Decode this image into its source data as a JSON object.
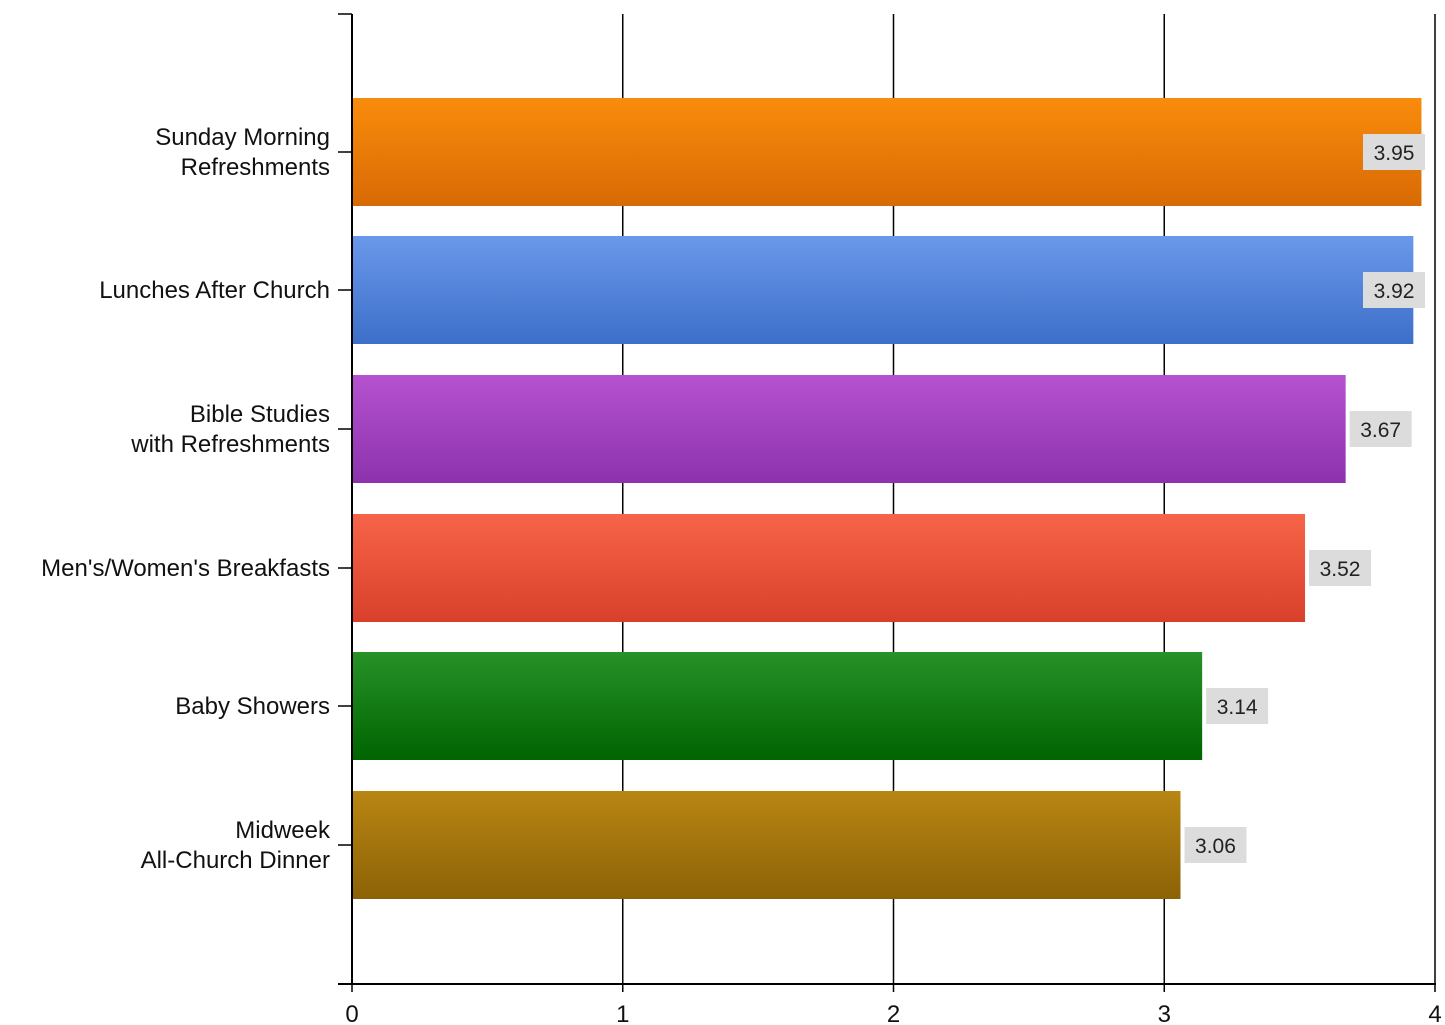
{
  "chart_data": {
    "type": "bar",
    "orientation": "horizontal",
    "title": "",
    "xlabel": "",
    "ylabel": "",
    "xlim": [
      0,
      4
    ],
    "x_ticks": [
      "0",
      "1",
      "2",
      "3",
      "4"
    ],
    "grid": true,
    "legend": "none",
    "categories": [
      "Sunday Morning\nRefreshments",
      "Lunches After Church",
      "Bible Studies\nwith Refreshments",
      "Men's/Women's Breakfasts",
      "Baby Showers",
      "Midweek\nAll-Church Dinner"
    ],
    "values": [
      3.95,
      3.92,
      3.67,
      3.52,
      3.14,
      3.06
    ],
    "value_labels": [
      "3.95",
      "3.92",
      "3.67",
      "3.52",
      "3.14",
      "3.06"
    ],
    "colors": [
      [
        "#f98c0c",
        "#d86a05"
      ],
      [
        "#6a98ea",
        "#3d6fc9"
      ],
      [
        "#b552d0",
        "#8d32ad"
      ],
      [
        "#f76449",
        "#d8402a"
      ],
      [
        "#279228",
        "#006400"
      ],
      [
        "#b88613",
        "#8c6206"
      ]
    ]
  }
}
